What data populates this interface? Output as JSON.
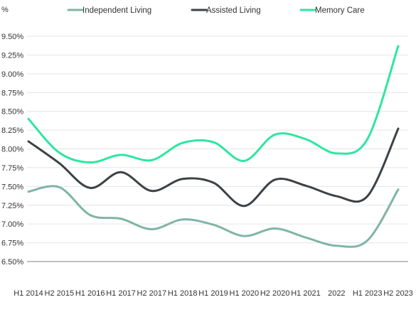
{
  "chart_data": {
    "type": "line",
    "unit_label": "%",
    "categories": [
      "H1 2014",
      "H2 2015",
      "H1 2016",
      "H1 2017",
      "H2 2017",
      "H1 2018",
      "H1 2019",
      "H1 2020",
      "H2 2020",
      "H1 2021",
      "2022",
      "H1 2023",
      "H2 2023"
    ],
    "ylim": [
      6.5,
      9.5
    ],
    "yticks": [
      6.5,
      6.75,
      7.0,
      7.25,
      7.5,
      7.75,
      8.0,
      8.25,
      8.5,
      8.75,
      9.0,
      9.25,
      9.5
    ],
    "ytick_labels": [
      "6.50%",
      "6.75%",
      "7.00%",
      "7.25%",
      "7.50%",
      "7.75%",
      "8.00%",
      "8.25%",
      "8.50%",
      "8.75%",
      "9.00%",
      "9.25%",
      "9.50%"
    ],
    "grid": true,
    "legend_position": "top",
    "series": [
      {
        "name": "Independent Living",
        "color": "#7fb5a6",
        "values": [
          7.43,
          7.49,
          7.12,
          7.07,
          6.93,
          7.06,
          6.99,
          6.84,
          6.94,
          6.82,
          6.71,
          6.78,
          7.46
        ]
      },
      {
        "name": "Assisted Living",
        "color": "#3d4246",
        "values": [
          8.1,
          7.81,
          7.48,
          7.69,
          7.44,
          7.6,
          7.55,
          7.24,
          7.59,
          7.51,
          7.37,
          7.37,
          8.27
        ]
      },
      {
        "name": "Memory Care",
        "color": "#2ee6a0",
        "values": [
          8.4,
          7.95,
          7.82,
          7.92,
          7.85,
          8.08,
          8.09,
          7.84,
          8.19,
          8.13,
          7.94,
          8.13,
          9.37
        ]
      }
    ]
  }
}
